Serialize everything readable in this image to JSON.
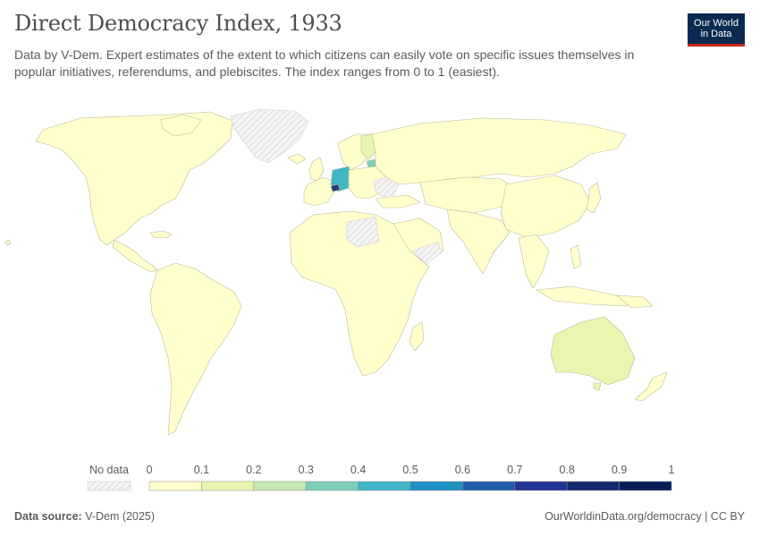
{
  "title": "Direct Democracy Index, 1933",
  "subtitle": "Data by V-Dem. Expert estimates of the extent to which citizens can easily vote on specific issues themselves in popular initiatives, referendums, and plebiscites. The index ranges from 0 to 1 (easiest).",
  "logo": {
    "line1": "Our World",
    "line2": "in Data"
  },
  "legend": {
    "no_data_label": "No data",
    "ticks": [
      "0",
      "0.1",
      "0.2",
      "0.3",
      "0.4",
      "0.5",
      "0.6",
      "0.7",
      "0.8",
      "0.9",
      "1"
    ],
    "bins": [
      {
        "from": 0,
        "to": 0.1,
        "color": "#ffffcc"
      },
      {
        "from": 0.1,
        "to": 0.2,
        "color": "#eaf6b0"
      },
      {
        "from": 0.2,
        "to": 0.3,
        "color": "#c5e8b2"
      },
      {
        "from": 0.3,
        "to": 0.4,
        "color": "#7fcdbb"
      },
      {
        "from": 0.4,
        "to": 0.5,
        "color": "#41b6c4"
      },
      {
        "from": 0.5,
        "to": 0.6,
        "color": "#1d91c0"
      },
      {
        "from": 0.6,
        "to": 0.7,
        "color": "#225ea8"
      },
      {
        "from": 0.7,
        "to": 0.8,
        "color": "#253494"
      },
      {
        "from": 0.8,
        "to": 0.9,
        "color": "#132a6e"
      },
      {
        "from": 0.9,
        "to": 1.0,
        "color": "#081d58"
      }
    ]
  },
  "footer": {
    "source_label": "Data source:",
    "source_value": "V-Dem (2025)",
    "url": "OurWorldinData.org/democracy | CC BY"
  },
  "colors": {
    "low": "#ffffcc",
    "nodata_stroke": "#cfcfcf",
    "border": "#b7b7a0"
  }
}
